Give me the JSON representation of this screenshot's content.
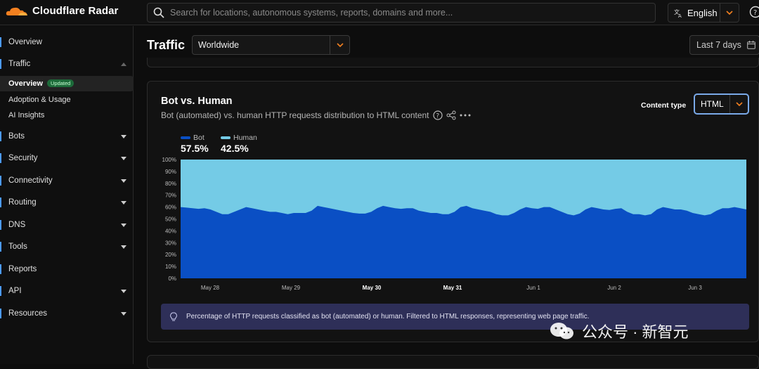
{
  "app": {
    "title": "Cloudflare Radar"
  },
  "search": {
    "placeholder": "Search for locations, autonomous systems, reports, domains and more..."
  },
  "language": {
    "label": "English"
  },
  "sidebar": {
    "items": [
      {
        "label": "Overview"
      },
      {
        "label": "Traffic"
      },
      {
        "label": "Overview",
        "badge": "Updated"
      },
      {
        "label": "Adoption & Usage"
      },
      {
        "label": "AI Insights"
      },
      {
        "label": "Bots"
      },
      {
        "label": "Security"
      },
      {
        "label": "Connectivity"
      },
      {
        "label": "Routing"
      },
      {
        "label": "DNS"
      },
      {
        "label": "Tools"
      },
      {
        "label": "Reports"
      },
      {
        "label": "API"
      },
      {
        "label": "Resources"
      }
    ]
  },
  "header": {
    "title": "Traffic",
    "location": "Worldwide",
    "date_range": "Last 7 days"
  },
  "card": {
    "title": "Bot vs. Human",
    "description": "Bot (automated) vs. human HTTP requests distribution to HTML content",
    "content_type_label": "Content type",
    "content_type_value": "HTML",
    "info": "Percentage of HTTP requests classified as bot (automated) or human. Filtered to HTML responses, representing web page traffic."
  },
  "legend": [
    {
      "name": "Bot",
      "value": "57.5%",
      "color": "#0a4fc4"
    },
    {
      "name": "Human",
      "value": "42.5%",
      "color": "#74cbe6"
    }
  ],
  "chart_data": {
    "type": "area",
    "stacked": true,
    "percent": true,
    "series": [
      {
        "name": "Bot",
        "values": [
          60,
          59.5,
          59,
          58.5,
          59,
          58,
          56,
          54,
          54,
          56,
          58,
          60,
          59,
          58,
          57,
          56,
          56,
          55,
          54,
          55,
          55,
          55,
          57,
          61,
          60,
          59,
          58,
          57,
          56,
          55,
          54.5,
          54.5,
          56,
          59,
          61,
          60,
          59,
          58.5,
          59,
          59,
          57,
          56,
          55,
          55,
          54,
          54,
          56,
          60,
          61,
          59,
          58,
          57,
          56,
          54,
          53,
          53,
          55,
          58,
          60,
          59,
          58.5,
          60,
          60,
          58,
          56,
          54,
          53,
          54.5,
          58,
          60,
          59,
          58,
          57.5,
          58.5,
          59,
          56,
          54,
          54,
          53,
          54,
          58,
          60,
          59,
          58,
          58,
          57,
          55,
          54,
          53,
          54,
          57,
          59,
          59,
          60,
          59,
          58
        ]
      },
      {
        "name": "Human",
        "values": [
          40,
          40.5,
          41,
          41.5,
          41,
          42,
          44,
          46,
          46,
          44,
          42,
          40,
          41,
          42,
          43,
          44,
          44,
          45,
          46,
          45,
          45,
          45,
          43,
          39,
          40,
          41,
          42,
          43,
          44,
          45,
          45.5,
          45.5,
          44,
          41,
          39,
          40,
          41,
          41.5,
          41,
          41,
          43,
          44,
          45,
          45,
          46,
          46,
          44,
          40,
          39,
          41,
          42,
          43,
          44,
          46,
          47,
          47,
          45,
          42,
          40,
          41,
          41.5,
          40,
          40,
          42,
          44,
          46,
          47,
          45.5,
          42,
          40,
          41,
          42,
          42.5,
          41.5,
          41,
          44,
          46,
          46,
          47,
          46,
          42,
          40,
          41,
          42,
          42,
          43,
          45,
          46,
          47,
          46,
          43,
          41,
          41,
          40,
          41,
          42
        ]
      }
    ],
    "x_ticks": [
      "May 28",
      "May 29",
      "May 30",
      "May 31",
      "Jun 1",
      "Jun 2",
      "Jun 3"
    ],
    "x_ticks_bold": [
      "May 30",
      "May 31"
    ],
    "y_ticks": [
      "0%",
      "10%",
      "20%",
      "30%",
      "40%",
      "50%",
      "60%",
      "70%",
      "80%",
      "90%",
      "100%"
    ],
    "ylim": [
      0,
      100
    ],
    "colors": {
      "Bot": "#0a4fc4",
      "Human": "#74cbe6"
    }
  },
  "watermark": {
    "text": "公众号 · 新智元"
  }
}
